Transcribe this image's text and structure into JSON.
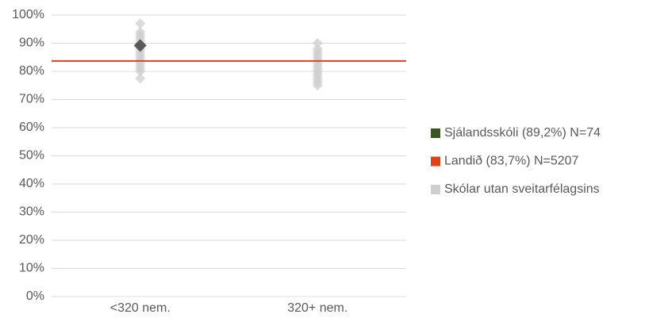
{
  "chart_data": {
    "type": "strip",
    "categories": [
      "<320 nem.",
      "320+ nem."
    ],
    "ylim": [
      0,
      100
    ],
    "yticks": [
      {
        "value": 0,
        "label": "0%"
      },
      {
        "value": 10,
        "label": "10%"
      },
      {
        "value": 20,
        "label": "20%"
      },
      {
        "value": 30,
        "label": "30%"
      },
      {
        "value": 40,
        "label": "40%"
      },
      {
        "value": 50,
        "label": "50%"
      },
      {
        "value": 60,
        "label": "60%"
      },
      {
        "value": 70,
        "label": "70%"
      },
      {
        "value": 80,
        "label": "80%"
      },
      {
        "value": 90,
        "label": "90%"
      },
      {
        "value": 100,
        "label": "100%"
      }
    ],
    "grid": true,
    "legend": "right",
    "series": [
      {
        "name": "Sjálandsskóli (89,2%) N=74",
        "kind": "point",
        "color": "#595959",
        "legend_color": "#375623",
        "values": [
          89.2,
          null
        ]
      },
      {
        "name": "Landið (83,7%) N=5207",
        "kind": "line",
        "color": "#e0401c",
        "value": 83.7
      },
      {
        "name": "Skólar utan sveitarfélagsins",
        "kind": "points",
        "color": "#cfcfcf",
        "values": [
          [
            97,
            94,
            93,
            92,
            91,
            90,
            88,
            87,
            86,
            85,
            84,
            83,
            82,
            81,
            80,
            77.5
          ],
          [
            90,
            88,
            87,
            86,
            85,
            84,
            83,
            82,
            81,
            80,
            79,
            78,
            77,
            76,
            75
          ]
        ]
      }
    ]
  }
}
